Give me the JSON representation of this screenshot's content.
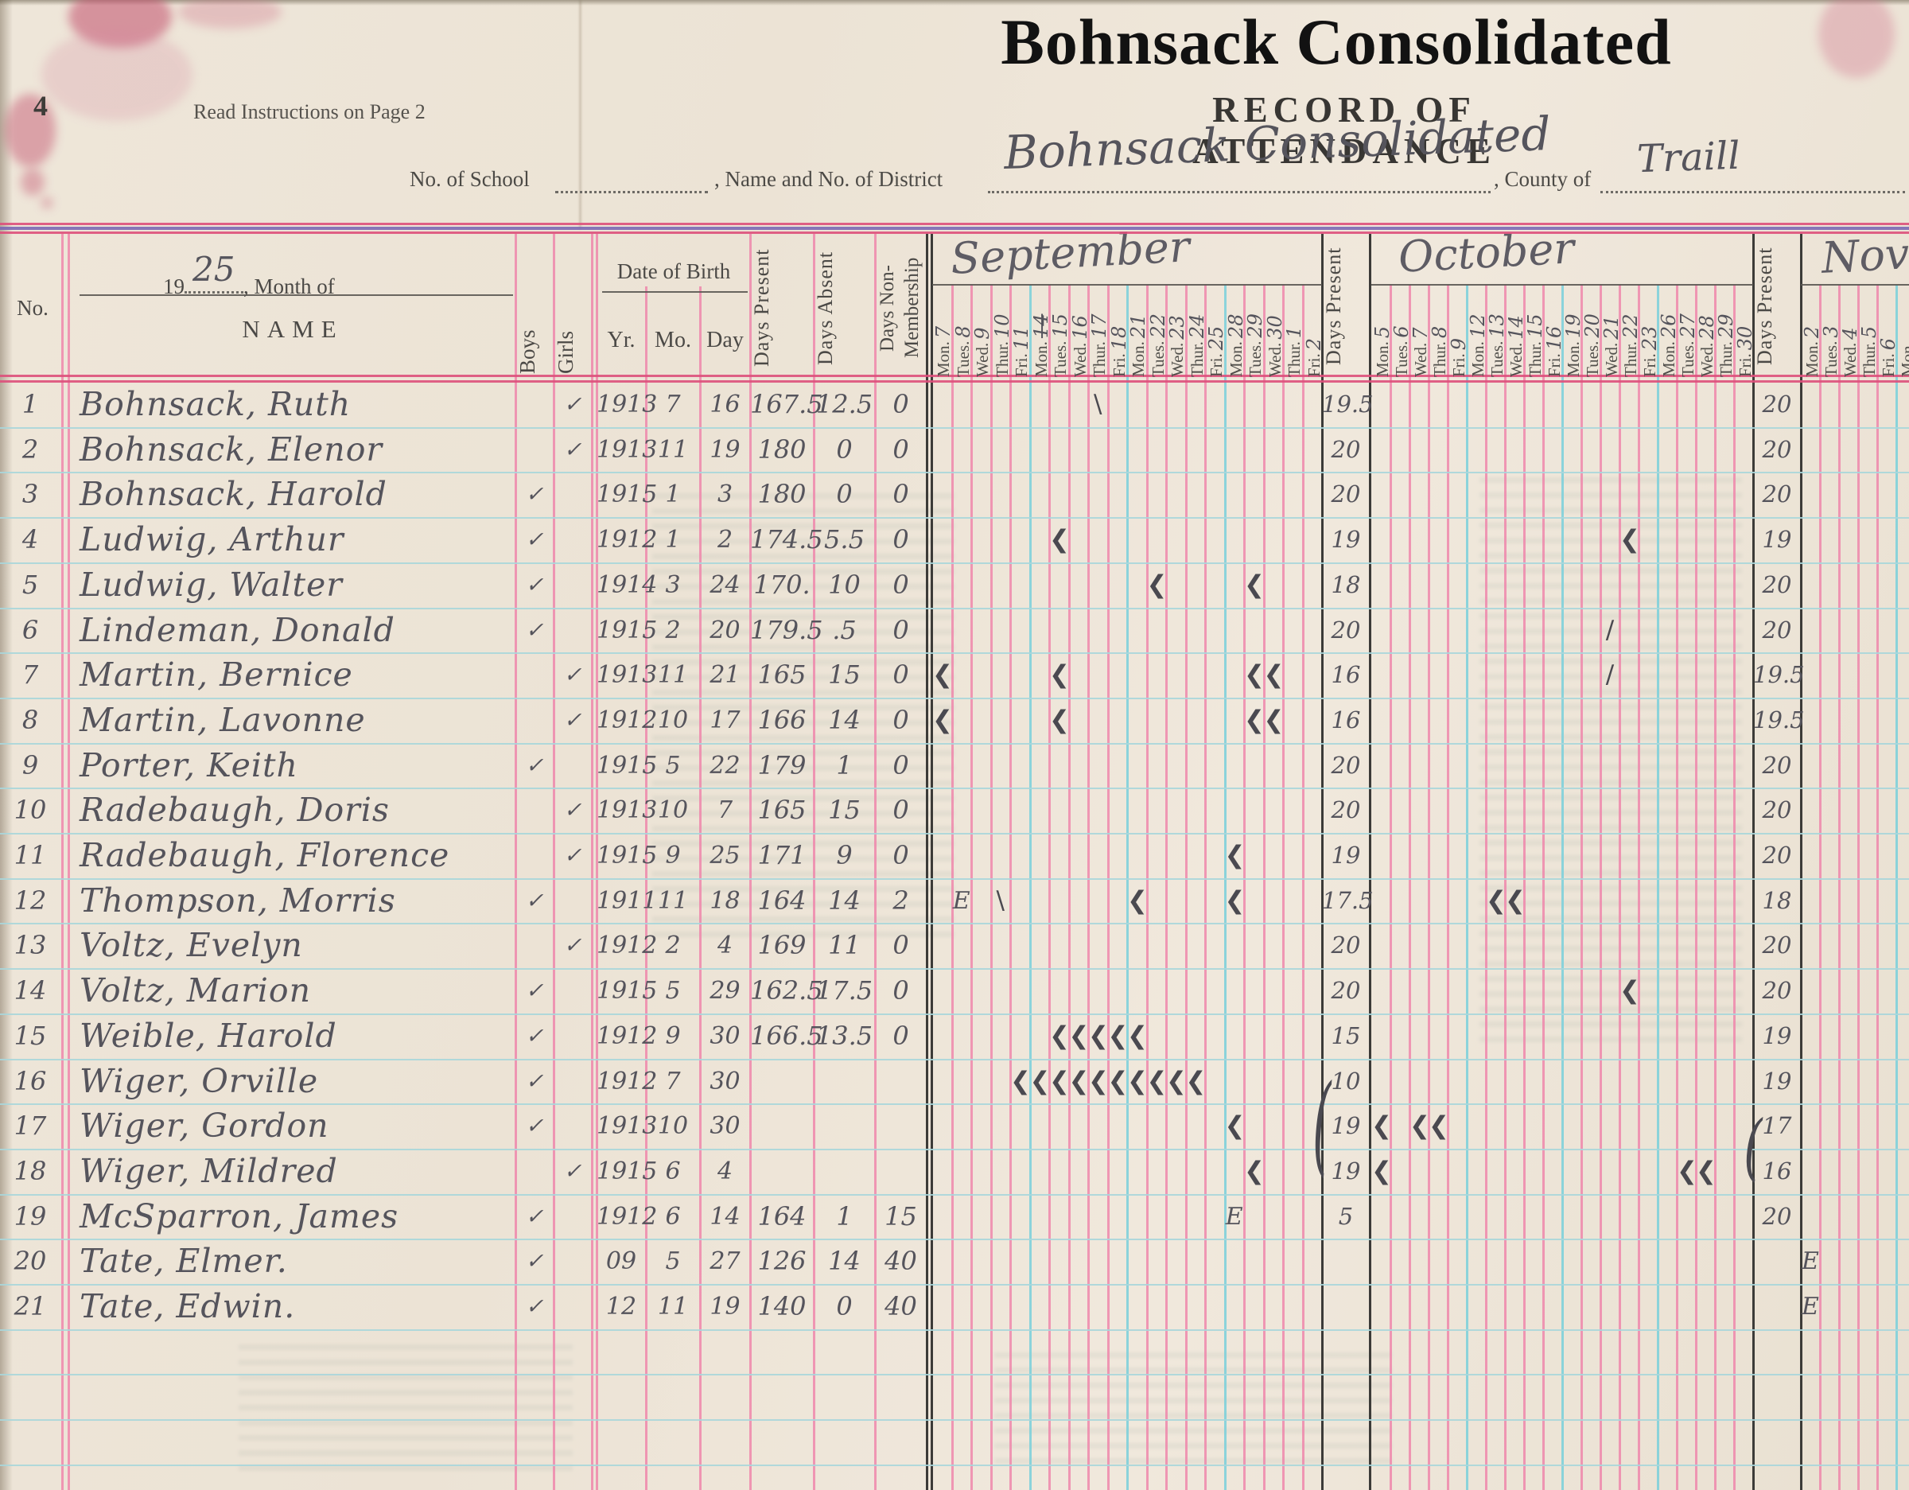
{
  "document": {
    "page_number": "4",
    "instructions_note": "Read Instructions on Page 2",
    "title": "Bohnsack Consolidated",
    "form_title": "RECORD OF ATTENDANCE",
    "fields": {
      "school_label": "No. of School",
      "district_label": ", Name and No. of District",
      "district_value": "Bohnsack Consolidated",
      "county_label": ", County of",
      "county_value": "Traill"
    }
  },
  "table": {
    "no_label": "No.",
    "year_prefix": "19",
    "year_value": "25",
    "month_of_label": ", Month of",
    "name_label": "NAME",
    "boys_label": "Boys",
    "girls_label": "Girls",
    "dob_label": "Date of Birth",
    "yr_label": "Yr.",
    "mo_label": "Mo.",
    "day_label": "Day",
    "days_present_label": "Days Present",
    "days_absent_label": "Days Absent",
    "days_nonmembership_label": "Days Non-\nMembership",
    "check_glyph": "✓",
    "months": [
      {
        "name": "September",
        "days_present_label": "Days Present",
        "days": [
          {
            "dow": "Mon.",
            "date": "7"
          },
          {
            "dow": "Tues.",
            "date": "8"
          },
          {
            "dow": "Wed.",
            "date": "9"
          },
          {
            "dow": "Thur.",
            "date": "10"
          },
          {
            "dow": "Fri.",
            "date": "11"
          },
          {
            "dow": "Mon.",
            "date": "14",
            "struck": true
          },
          {
            "dow": "Tues.",
            "date": "15"
          },
          {
            "dow": "Wed.",
            "date": "16"
          },
          {
            "dow": "Thur.",
            "date": "17"
          },
          {
            "dow": "Fri.",
            "date": "18"
          },
          {
            "dow": "Mon.",
            "date": "21"
          },
          {
            "dow": "Tues.",
            "date": "22"
          },
          {
            "dow": "Wed.",
            "date": "23"
          },
          {
            "dow": "Thur.",
            "date": "24"
          },
          {
            "dow": "Fri.",
            "date": "25"
          },
          {
            "dow": "Mon.",
            "date": "28"
          },
          {
            "dow": "Tues.",
            "date": "29"
          },
          {
            "dow": "Wed.",
            "date": "30"
          },
          {
            "dow": "Thur.",
            "date": "1"
          },
          {
            "dow": "Fri.",
            "date": "2"
          }
        ]
      },
      {
        "name": "October",
        "days_present_label": "Days Present",
        "days": [
          {
            "dow": "Mon.",
            "date": "5"
          },
          {
            "dow": "Tues.",
            "date": "6"
          },
          {
            "dow": "Wed.",
            "date": "7"
          },
          {
            "dow": "Thur.",
            "date": "8"
          },
          {
            "dow": "Fri.",
            "date": "9"
          },
          {
            "dow": "Mon.",
            "date": "12"
          },
          {
            "dow": "Tues.",
            "date": "13"
          },
          {
            "dow": "Wed.",
            "date": "14"
          },
          {
            "dow": "Thur.",
            "date": "15"
          },
          {
            "dow": "Fri.",
            "date": "16"
          },
          {
            "dow": "Mon.",
            "date": "19"
          },
          {
            "dow": "Tues.",
            "date": "20"
          },
          {
            "dow": "Wed.",
            "date": "21"
          },
          {
            "dow": "Thur.",
            "date": "22"
          },
          {
            "dow": "Fri.",
            "date": "23"
          },
          {
            "dow": "Mon.",
            "date": "26"
          },
          {
            "dow": "Tues.",
            "date": "27"
          },
          {
            "dow": "Wed.",
            "date": "28"
          },
          {
            "dow": "Thur.",
            "date": "29"
          },
          {
            "dow": "Fri.",
            "date": "30"
          }
        ]
      },
      {
        "name": "Nov",
        "days": [
          {
            "dow": "Mon.",
            "date": "2"
          },
          {
            "dow": "Tues.",
            "date": "3"
          },
          {
            "dow": "Wed.",
            "date": "4"
          },
          {
            "dow": "Thur.",
            "date": "5"
          },
          {
            "dow": "Fri.",
            "date": "6"
          },
          {
            "dow": "Mon.",
            "date": ""
          }
        ]
      }
    ],
    "students": [
      {
        "no": "1",
        "name": "Bohnsack, Ruth",
        "boys": "",
        "girls": "✓",
        "yr": "1913",
        "mo": "7",
        "day": "16",
        "present": "167.5",
        "absent": "12.5",
        "nonmem": "0",
        "sep": "19.5",
        "oct": "20",
        "marks": [
          [
            "s",
            9,
            "\\"
          ]
        ]
      },
      {
        "no": "2",
        "name": "Bohnsack, Elenor",
        "boys": "",
        "girls": "✓",
        "yr": "1913",
        "mo": "11",
        "day": "19",
        "present": "180",
        "absent": "0",
        "nonmem": "0",
        "sep": "20",
        "oct": "20",
        "marks": []
      },
      {
        "no": "3",
        "name": "Bohnsack, Harold",
        "boys": "✓",
        "girls": "",
        "yr": "1915",
        "mo": "1",
        "day": "3",
        "present": "180",
        "absent": "0",
        "nonmem": "0",
        "sep": "20",
        "oct": "20",
        "marks": []
      },
      {
        "no": "4",
        "name": "Ludwig, Arthur",
        "boys": "✓",
        "girls": "",
        "yr": "1912",
        "mo": "1",
        "day": "2",
        "present": "174.5",
        "absent": "5.5",
        "nonmem": "0",
        "sep": "19",
        "oct": "19",
        "marks": [
          [
            "s",
            7,
            "❮"
          ],
          [
            "o",
            14,
            "❮"
          ]
        ]
      },
      {
        "no": "5",
        "name": "Ludwig, Walter",
        "boys": "✓",
        "girls": "",
        "yr": "1914",
        "mo": "3",
        "day": "24",
        "present": "170.",
        "absent": "10",
        "nonmem": "0",
        "sep": "18",
        "oct": "20",
        "marks": [
          [
            "s",
            12,
            "❮"
          ],
          [
            "s",
            17,
            "❮"
          ]
        ]
      },
      {
        "no": "6",
        "name": "Lindeman, Donald",
        "boys": "✓",
        "girls": "",
        "yr": "1915",
        "mo": "2",
        "day": "20",
        "present": "179.5",
        "absent": ".5",
        "nonmem": "0",
        "sep": "20",
        "oct": "20",
        "marks": [
          [
            "o",
            13,
            "/"
          ]
        ]
      },
      {
        "no": "7",
        "name": "Martin, Bernice",
        "boys": "",
        "girls": "✓",
        "yr": "1913",
        "mo": "11",
        "day": "21",
        "present": "165",
        "absent": "15",
        "nonmem": "0",
        "sep": "16",
        "oct": "19.5",
        "marks": [
          [
            "s",
            1,
            "❮"
          ],
          [
            "s",
            7,
            "❮"
          ],
          [
            "s",
            17,
            "❮"
          ],
          [
            "s",
            18,
            "❮"
          ],
          [
            "o",
            13,
            "/"
          ]
        ]
      },
      {
        "no": "8",
        "name": "Martin, Lavonne",
        "boys": "",
        "girls": "✓",
        "yr": "1912",
        "mo": "10",
        "day": "17",
        "present": "166",
        "absent": "14",
        "nonmem": "0",
        "sep": "16",
        "oct": "19.5",
        "marks": [
          [
            "s",
            1,
            "❮"
          ],
          [
            "s",
            7,
            "❮"
          ],
          [
            "s",
            17,
            "❮"
          ],
          [
            "s",
            18,
            "❮"
          ]
        ]
      },
      {
        "no": "9",
        "name": "Porter, Keith",
        "boys": "✓",
        "girls": "",
        "yr": "1915",
        "mo": "5",
        "day": "22",
        "present": "179",
        "absent": "1",
        "nonmem": "0",
        "sep": "20",
        "oct": "20",
        "marks": []
      },
      {
        "no": "10",
        "name": "Radebaugh, Doris",
        "boys": "",
        "girls": "✓",
        "yr": "1913",
        "mo": "10",
        "day": "7",
        "present": "165",
        "absent": "15",
        "nonmem": "0",
        "sep": "20",
        "oct": "20",
        "marks": []
      },
      {
        "no": "11",
        "name": "Radebaugh, Florence",
        "boys": "",
        "girls": "✓",
        "yr": "1915",
        "mo": "9",
        "day": "25",
        "present": "171",
        "absent": "9",
        "nonmem": "0",
        "sep": "19",
        "oct": "20",
        "marks": [
          [
            "s",
            16,
            "❮"
          ]
        ]
      },
      {
        "no": "12",
        "name": "Thompson, Morris",
        "boys": "✓",
        "girls": "",
        "yr": "1911",
        "mo": "11",
        "day": "18",
        "present": "164",
        "absent": "14",
        "nonmem": "2",
        "sep": "17.5",
        "oct": "18",
        "marks": [
          [
            "s",
            2,
            "E"
          ],
          [
            "s",
            4,
            "\\"
          ],
          [
            "s",
            11,
            "❮"
          ],
          [
            "s",
            16,
            "❮"
          ],
          [
            "o",
            7,
            "❮"
          ],
          [
            "o",
            8,
            "❮"
          ]
        ]
      },
      {
        "no": "13",
        "name": "Voltz, Evelyn",
        "boys": "",
        "girls": "✓",
        "yr": "1912",
        "mo": "2",
        "day": "4",
        "present": "169",
        "absent": "11",
        "nonmem": "0",
        "sep": "20",
        "oct": "20",
        "marks": []
      },
      {
        "no": "14",
        "name": "Voltz, Marion",
        "boys": "✓",
        "girls": "",
        "yr": "1915",
        "mo": "5",
        "day": "29",
        "present": "162.5",
        "absent": "17.5",
        "nonmem": "0",
        "sep": "20",
        "oct": "20",
        "marks": [
          [
            "o",
            14,
            "❮"
          ]
        ]
      },
      {
        "no": "15",
        "name": "Weible, Harold",
        "boys": "✓",
        "girls": "",
        "yr": "1912",
        "mo": "9",
        "day": "30",
        "present": "166.5",
        "absent": "13.5",
        "nonmem": "0",
        "sep": "15",
        "oct": "19",
        "marks": [
          [
            "s",
            7,
            "❮"
          ],
          [
            "s",
            8,
            "❮"
          ],
          [
            "s",
            9,
            "❮"
          ],
          [
            "s",
            10,
            "❮"
          ],
          [
            "s",
            11,
            "❮"
          ]
        ]
      },
      {
        "no": "16",
        "name": "Wiger, Orville",
        "boys": "✓",
        "girls": "",
        "yr": "1912",
        "mo": "7",
        "day": "30",
        "present": "",
        "absent": "",
        "nonmem": "",
        "sep": "10",
        "oct": "19",
        "marks": [
          [
            "s",
            5,
            "❮"
          ],
          [
            "s",
            6,
            "❮"
          ],
          [
            "s",
            7,
            "❮"
          ],
          [
            "s",
            8,
            "❮"
          ],
          [
            "s",
            9,
            "❮"
          ],
          [
            "s",
            10,
            "❮"
          ],
          [
            "s",
            11,
            "❮"
          ],
          [
            "s",
            12,
            "❮"
          ],
          [
            "s",
            13,
            "❮"
          ],
          [
            "s",
            14,
            "❮"
          ]
        ]
      },
      {
        "no": "17",
        "name": "Wiger, Gordon",
        "boys": "✓",
        "girls": "",
        "yr": "1913",
        "mo": "10",
        "day": "30",
        "present": "",
        "absent": "",
        "nonmem": "",
        "sep": "19",
        "oct": "17",
        "marks": [
          [
            "s",
            16,
            "❮"
          ],
          [
            "o",
            1,
            "❮"
          ],
          [
            "o",
            3,
            "❮"
          ],
          [
            "o",
            4,
            "❮"
          ]
        ]
      },
      {
        "no": "18",
        "name": "Wiger, Mildred",
        "boys": "",
        "girls": "✓",
        "yr": "1915",
        "mo": "6",
        "day": "4",
        "present": "",
        "absent": "",
        "nonmem": "",
        "sep": "19",
        "oct": "16",
        "marks": [
          [
            "s",
            17,
            "❮"
          ],
          [
            "o",
            1,
            "❮"
          ],
          [
            "o",
            17,
            "❮"
          ],
          [
            "o",
            18,
            "❮"
          ]
        ]
      },
      {
        "no": "19",
        "name": "McSparron, James",
        "boys": "✓",
        "girls": "",
        "yr": "1912",
        "mo": "6",
        "day": "14",
        "present": "164",
        "absent": "1",
        "nonmem": "15",
        "sep": "5",
        "oct": "20",
        "marks": [
          [
            "s",
            16,
            "E"
          ]
        ]
      },
      {
        "no": "20",
        "name": "Tate, Elmer.",
        "boys": "✓",
        "girls": "",
        "yr": "09",
        "mo": "5",
        "day": "27",
        "present": "126",
        "absent": "14",
        "nonmem": "40",
        "sep": "",
        "oct": "",
        "marks": [
          [
            "n",
            1,
            "E"
          ]
        ]
      },
      {
        "no": "21",
        "name": "Tate, Edwin.",
        "boys": "✓",
        "girls": "",
        "yr": "12",
        "mo": "11",
        "day": "19",
        "present": "140",
        "absent": "0",
        "nonmem": "40",
        "sep": "",
        "oct": "",
        "marks": [
          [
            "n",
            1,
            "E"
          ]
        ]
      }
    ],
    "braces": [
      {
        "month": "s",
        "row_from": 16,
        "row_to": 18,
        "glyph": "("
      },
      {
        "month": "o",
        "row_from": 17,
        "row_to": 18,
        "glyph": "("
      }
    ]
  }
}
